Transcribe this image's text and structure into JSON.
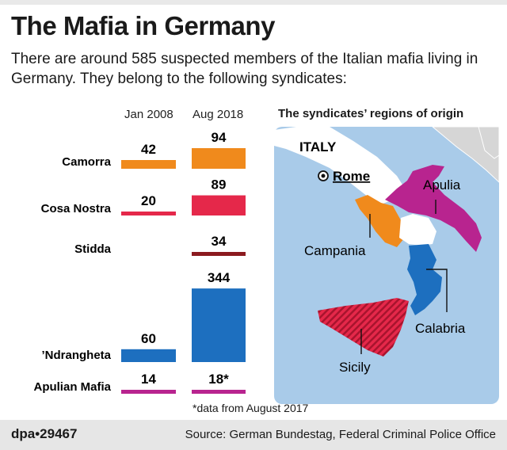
{
  "header": {
    "title": "The Mafia in Germany",
    "subtitle": "There are around 585 suspected members of the Italian mafia living in Germany. They belong to the following syndicates:"
  },
  "chart_data": {
    "type": "bar",
    "orientation": "horizontal",
    "categories": [
      "Camorra",
      "Cosa Nostra",
      "Stidda",
      "’Ndrangheta",
      "Apulian Mafia"
    ],
    "series": [
      {
        "name": "Jan 2008",
        "values": [
          42,
          20,
          null,
          60,
          14
        ],
        "labels": [
          "42",
          "20",
          "",
          "60",
          "14"
        ]
      },
      {
        "name": "Aug 2018",
        "values": [
          94,
          89,
          34,
          344,
          18
        ],
        "labels": [
          "94",
          "89",
          "34",
          "344",
          "18*"
        ]
      }
    ],
    "colors": {
      "Camorra": "#f08a1c",
      "Cosa Nostra": "#e5284a",
      "Stidda": "#8b1a1f",
      "’Ndrangheta": "#1d6fbf",
      "Apulian Mafia": "#b8248f"
    }
  },
  "map": {
    "title": "The syndicates’ regions of origin",
    "country": "ITALY",
    "capital": "Rome",
    "regions": [
      "Apulia",
      "Campania",
      "Calabria",
      "Sicily"
    ],
    "colors": {
      "sea": "#a9cbe9",
      "land": "#ffffff",
      "outer_land": "#d6d6d6"
    }
  },
  "footnote": "*data from August 2017",
  "footer": {
    "logo": "dpa•29467",
    "source": "Source: German Bundestag, Federal Criminal Police Office"
  }
}
